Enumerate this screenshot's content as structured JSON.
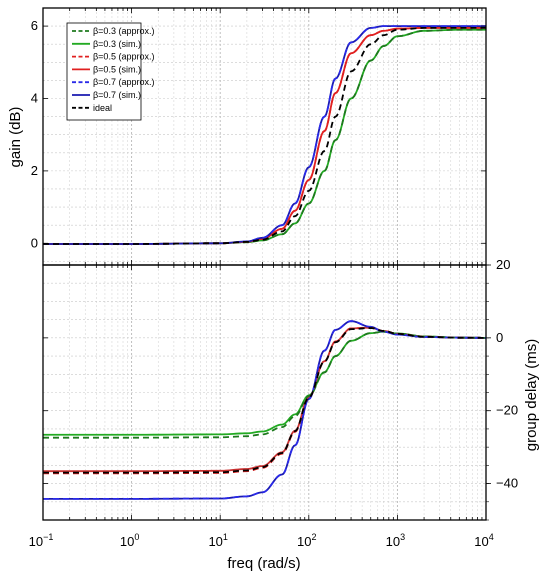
{
  "chart_data": [
    {
      "type": "line",
      "panel": "top",
      "xlabel": "freq (rad/s)",
      "ylabel": "gain (dB)",
      "xscale": "log",
      "xlim": [
        0.1,
        10000
      ],
      "ylim": [
        -0.6,
        6.5
      ],
      "x_ticks": [
        0.1,
        1,
        10,
        100,
        1000,
        10000
      ],
      "x_tick_labels": [
        [
          "10",
          "−1"
        ],
        [
          "10",
          "0"
        ],
        [
          "10",
          "1"
        ],
        [
          "10",
          "2"
        ],
        [
          "10",
          "3"
        ],
        [
          "10",
          "4"
        ]
      ],
      "y_ticks": [
        0,
        2,
        4,
        6
      ],
      "y_tick_labels": [
        "0",
        "2",
        "4",
        "6"
      ],
      "grid": true,
      "legend_position": "top-left",
      "x": [
        0.1,
        1,
        10,
        20,
        30,
        50,
        70,
        100,
        150,
        200,
        300,
        500,
        700,
        1000,
        2000,
        5000,
        10000
      ],
      "series": [
        {
          "name": "β=0.3 (approx.)",
          "color": "#1e7a1e",
          "dash": "dashed",
          "values": [
            -0.02,
            -0.02,
            0.0,
            0.03,
            0.08,
            0.25,
            0.55,
            1.1,
            2.0,
            2.85,
            4.0,
            5.05,
            5.45,
            5.72,
            5.87,
            5.9,
            5.9
          ]
        },
        {
          "name": "β=0.3 (sim.)",
          "color": "#22aa22",
          "dash": "solid",
          "values": [
            -0.02,
            -0.02,
            0.0,
            0.03,
            0.08,
            0.25,
            0.55,
            1.1,
            2.0,
            2.85,
            4.0,
            5.05,
            5.45,
            5.72,
            5.87,
            5.9,
            5.9
          ]
        },
        {
          "name": "β=0.5 (approx.)",
          "color": "#e02020",
          "dash": "dashed",
          "values": [
            -0.02,
            -0.02,
            0.0,
            0.04,
            0.12,
            0.4,
            0.9,
            1.75,
            3.1,
            4.15,
            5.25,
            5.75,
            5.87,
            5.93,
            5.95,
            5.95,
            5.95
          ]
        },
        {
          "name": "β=0.5 (sim.)",
          "color": "#e02020",
          "dash": "solid",
          "values": [
            -0.02,
            -0.02,
            0.0,
            0.04,
            0.12,
            0.4,
            0.9,
            1.75,
            3.1,
            4.15,
            5.25,
            5.75,
            5.87,
            5.93,
            5.95,
            5.95,
            5.95
          ]
        },
        {
          "name": "β=0.7 (approx.)",
          "color": "#2a2ae8",
          "dash": "dashed",
          "values": [
            -0.02,
            -0.02,
            0.0,
            0.05,
            0.15,
            0.5,
            1.1,
            2.1,
            3.5,
            4.55,
            5.55,
            5.95,
            6.0,
            6.0,
            6.0,
            6.0,
            6.0
          ]
        },
        {
          "name": "β=0.7 (sim.)",
          "color": "#1a1ab0",
          "dash": "solid",
          "values": [
            -0.02,
            -0.02,
            0.0,
            0.05,
            0.15,
            0.5,
            1.1,
            2.1,
            3.5,
            4.55,
            5.55,
            5.95,
            6.0,
            6.0,
            6.0,
            6.0,
            6.0
          ]
        },
        {
          "name": "ideal",
          "color": "#000000",
          "dash": "dashed",
          "values": [
            -0.02,
            -0.02,
            0.0,
            0.04,
            0.1,
            0.33,
            0.75,
            1.45,
            2.55,
            3.5,
            4.75,
            5.5,
            5.75,
            5.9,
            5.95,
            5.95,
            5.95
          ]
        }
      ]
    },
    {
      "type": "line",
      "panel": "bottom",
      "xlabel": "freq (rad/s)",
      "ylabel": "group delay (ms)",
      "xscale": "log",
      "xlim": [
        0.1,
        10000
      ],
      "ylim": [
        -50,
        20
      ],
      "x_ticks": [
        0.1,
        1,
        10,
        100,
        1000,
        10000
      ],
      "y_ticks": [
        -40,
        -20,
        0,
        20
      ],
      "y_tick_labels": [
        "−40",
        "−20",
        "0",
        "20"
      ],
      "grid": true,
      "x": [
        0.1,
        1,
        10,
        20,
        30,
        50,
        70,
        100,
        150,
        200,
        300,
        500,
        700,
        1000,
        2000,
        5000,
        10000
      ],
      "series": [
        {
          "name": "β=0.3 (approx.)",
          "color": "#1e7a1e",
          "dash": "dashed",
          "values": [
            -27.4,
            -27.4,
            -27.3,
            -27.0,
            -26.5,
            -24.5,
            -21.5,
            -16.0,
            -9.5,
            -5.0,
            -0.8,
            1.3,
            1.7,
            1.2,
            0.4,
            0.05,
            0.0
          ]
        },
        {
          "name": "β=0.3 (sim.)",
          "color": "#22aa22",
          "dash": "solid",
          "values": [
            -26.6,
            -26.6,
            -26.5,
            -26.2,
            -25.7,
            -23.8,
            -21.0,
            -15.8,
            -9.4,
            -5.0,
            -0.8,
            1.3,
            1.7,
            1.2,
            0.4,
            0.05,
            0.0
          ]
        },
        {
          "name": "β=0.5 (approx.)",
          "color": "#e02020",
          "dash": "dashed",
          "values": [
            -37.2,
            -37.2,
            -37.1,
            -36.6,
            -35.7,
            -31.8,
            -25.8,
            -16.5,
            -6.5,
            -1.0,
            2.6,
            2.8,
            1.9,
            1.1,
            0.3,
            0.05,
            0.0
          ]
        },
        {
          "name": "β=0.5 (sim.)",
          "color": "#c83030",
          "dash": "solid",
          "values": [
            -36.6,
            -36.6,
            -36.5,
            -36.0,
            -35.2,
            -31.4,
            -25.5,
            -16.3,
            -6.4,
            -1.0,
            2.6,
            2.8,
            1.9,
            1.1,
            0.3,
            0.05,
            0.0
          ]
        },
        {
          "name": "β=0.7 (approx.)",
          "color": "#2a2ae8",
          "dash": "dashed",
          "values": [
            -44.2,
            -44.2,
            -44.1,
            -43.5,
            -42.4,
            -37.5,
            -29.5,
            -16.8,
            -3.5,
            2.2,
            4.6,
            3.0,
            1.7,
            0.9,
            0.25,
            0.05,
            0.0
          ]
        },
        {
          "name": "β=0.7 (sim.)",
          "color": "#1a1ab0",
          "dash": "solid",
          "values": [
            -44.2,
            -44.2,
            -44.1,
            -43.5,
            -42.4,
            -37.5,
            -29.5,
            -16.8,
            -3.5,
            2.2,
            4.6,
            3.0,
            1.7,
            0.9,
            0.25,
            0.05,
            0.0
          ]
        },
        {
          "name": "ideal",
          "color": "#000000",
          "dash": "dashed",
          "values": [
            -37.0,
            -37.0,
            -36.9,
            -36.4,
            -35.5,
            -31.6,
            -25.6,
            -16.4,
            -6.5,
            -1.2,
            2.4,
            2.7,
            1.9,
            1.1,
            0.3,
            0.05,
            0.0
          ]
        }
      ]
    }
  ]
}
